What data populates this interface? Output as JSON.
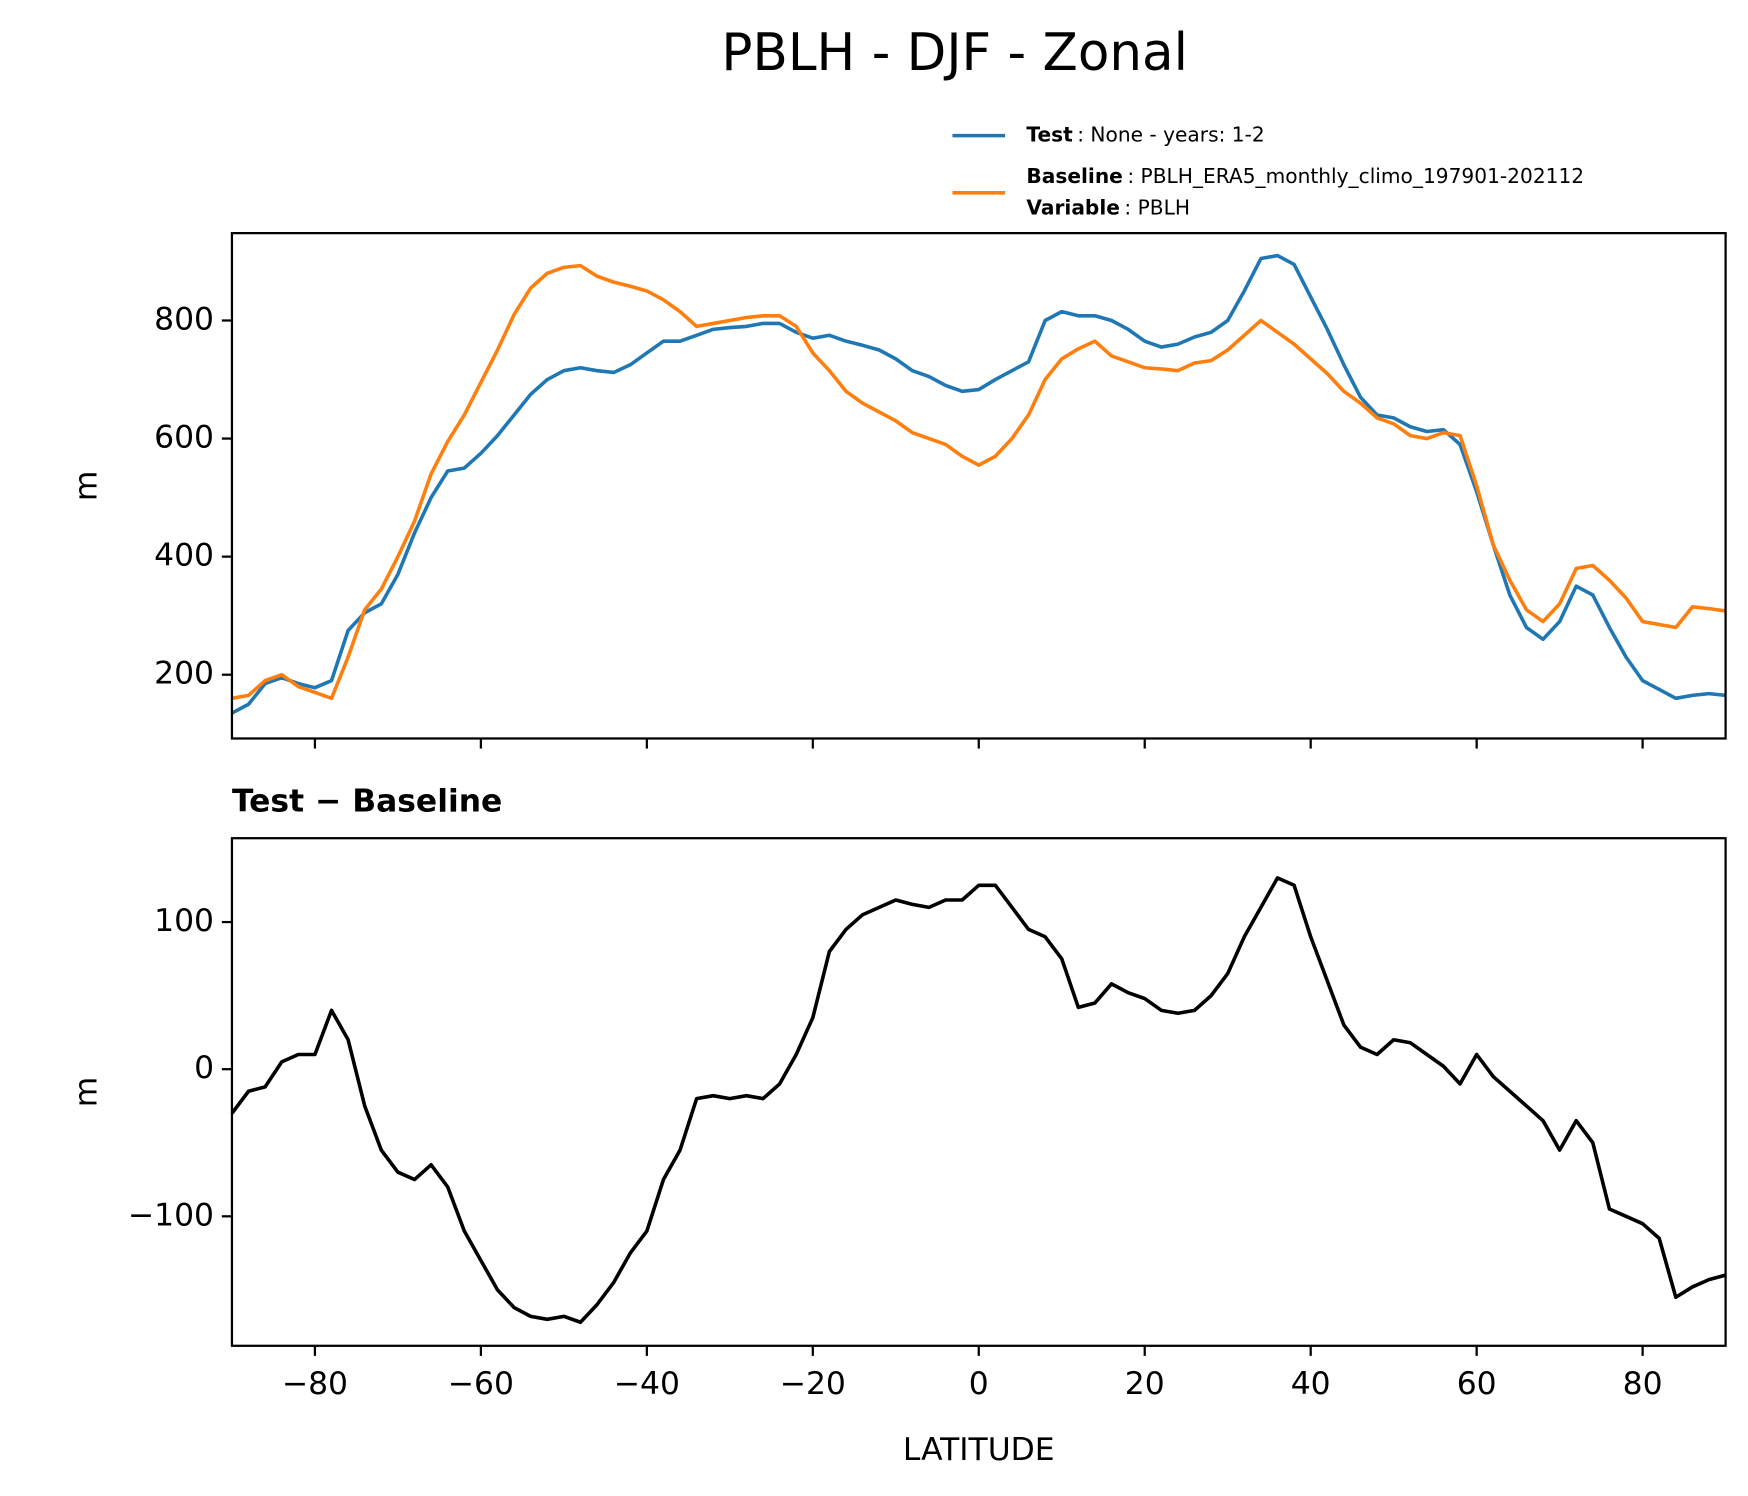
{
  "title": "PBLH - DJF - Zonal",
  "chart_data": [
    {
      "type": "line",
      "ylabel": "m",
      "legend": {
        "extra": {
          "name": "Variable",
          "description": ": PBLH"
        }
      },
      "xlim": [
        -90,
        90
      ],
      "xticks": [
        -80,
        -60,
        -40,
        -20,
        0,
        20,
        40,
        60,
        80
      ],
      "ylim": [
        92,
        948
      ],
      "yticks": [
        200,
        400,
        600,
        800
      ],
      "x": [
        -90,
        -88,
        -86,
        -84,
        -82,
        -80,
        -78,
        -76,
        -74,
        -72,
        -70,
        -68,
        -66,
        -64,
        -62,
        -60,
        -58,
        -56,
        -54,
        -52,
        -50,
        -48,
        -46,
        -44,
        -42,
        -40,
        -38,
        -36,
        -34,
        -32,
        -30,
        -28,
        -26,
        -24,
        -22,
        -20,
        -18,
        -16,
        -14,
        -12,
        -10,
        -8,
        -6,
        -4,
        -2,
        0,
        2,
        4,
        6,
        8,
        10,
        12,
        14,
        16,
        18,
        20,
        22,
        24,
        26,
        28,
        30,
        32,
        34,
        36,
        38,
        40,
        42,
        44,
        46,
        48,
        50,
        52,
        54,
        56,
        58,
        60,
        62,
        64,
        66,
        68,
        70,
        72,
        74,
        76,
        78,
        80,
        82,
        84,
        86,
        88,
        90
      ],
      "series": [
        {
          "name": "Test",
          "description": ": None - years: 1-2",
          "color": "#1f77b4",
          "values": [
            135,
            150,
            185,
            195,
            185,
            178,
            190,
            275,
            305,
            320,
            370,
            440,
            500,
            545,
            550,
            575,
            605,
            640,
            675,
            700,
            715,
            720,
            715,
            712,
            725,
            745,
            765,
            765,
            775,
            785,
            788,
            790,
            795,
            795,
            780,
            770,
            775,
            765,
            758,
            750,
            735,
            715,
            705,
            690,
            680,
            683,
            700,
            715,
            730,
            800,
            815,
            808,
            808,
            800,
            785,
            765,
            755,
            760,
            772,
            780,
            800,
            850,
            905,
            910,
            895,
            840,
            785,
            725,
            670,
            640,
            635,
            620,
            612,
            615,
            590,
            510,
            420,
            335,
            280,
            260,
            290,
            350,
            335,
            280,
            230,
            190,
            175,
            160,
            165,
            168,
            165
          ]
        },
        {
          "name": "Baseline",
          "description": ": PBLH_ERA5_monthly_climo_197901-202112",
          "color": "#ff7f0e",
          "values": [
            160,
            165,
            190,
            200,
            180,
            170,
            160,
            230,
            310,
            345,
            400,
            460,
            540,
            595,
            640,
            695,
            750,
            810,
            855,
            880,
            890,
            893,
            875,
            865,
            858,
            850,
            835,
            815,
            790,
            795,
            800,
            805,
            808,
            808,
            790,
            745,
            715,
            680,
            660,
            645,
            630,
            610,
            600,
            590,
            570,
            555,
            570,
            600,
            640,
            700,
            735,
            752,
            765,
            740,
            730,
            720,
            718,
            715,
            728,
            732,
            750,
            775,
            800,
            780,
            760,
            735,
            710,
            680,
            660,
            635,
            625,
            605,
            600,
            610,
            605,
            520,
            420,
            360,
            310,
            290,
            320,
            380,
            385,
            360,
            330,
            290,
            285,
            280,
            315,
            312,
            308
          ]
        }
      ]
    },
    {
      "type": "line",
      "subtitle": "Test − Baseline",
      "ylabel": "m",
      "xlabel": "LATITUDE",
      "xlim": [
        -90,
        90
      ],
      "xticks": [
        {
          "value": -80,
          "label": "−80"
        },
        {
          "value": -60,
          "label": "−60"
        },
        {
          "value": -40,
          "label": "−40"
        },
        {
          "value": -20,
          "label": "−20"
        },
        0,
        20,
        40,
        60,
        80
      ],
      "ylim": [
        -188,
        157
      ],
      "yticks": [
        {
          "value": -100,
          "label": "−100"
        },
        0,
        100
      ],
      "x": [
        -90,
        -88,
        -86,
        -84,
        -82,
        -80,
        -78,
        -76,
        -74,
        -72,
        -70,
        -68,
        -66,
        -64,
        -62,
        -60,
        -58,
        -56,
        -54,
        -52,
        -50,
        -48,
        -46,
        -44,
        -42,
        -40,
        -38,
        -36,
        -34,
        -32,
        -30,
        -28,
        -26,
        -24,
        -22,
        -20,
        -18,
        -16,
        -14,
        -12,
        -10,
        -8,
        -6,
        -4,
        -2,
        0,
        2,
        4,
        6,
        8,
        10,
        12,
        14,
        16,
        18,
        20,
        22,
        24,
        26,
        28,
        30,
        32,
        34,
        36,
        38,
        40,
        42,
        44,
        46,
        48,
        50,
        52,
        54,
        56,
        58,
        60,
        62,
        64,
        66,
        68,
        70,
        72,
        74,
        76,
        78,
        80,
        82,
        84,
        86,
        88,
        90
      ],
      "color": "#000000",
      "values": [
        -30,
        -15,
        -12,
        5,
        10,
        10,
        40,
        20,
        -25,
        -55,
        -70,
        -75,
        -65,
        -80,
        -110,
        -130,
        -150,
        -162,
        -168,
        -170,
        -168,
        -172,
        -160,
        -145,
        -125,
        -110,
        -75,
        -55,
        -20,
        -18,
        -20,
        -18,
        -20,
        -10,
        10,
        35,
        80,
        95,
        105,
        110,
        115,
        112,
        110,
        115,
        115,
        125,
        125,
        110,
        95,
        90,
        75,
        42,
        45,
        58,
        52,
        48,
        40,
        38,
        40,
        50,
        65,
        90,
        110,
        130,
        125,
        90,
        60,
        30,
        15,
        10,
        20,
        18,
        10,
        2,
        -10,
        10,
        -5,
        -15,
        -25,
        -35,
        -55,
        -35,
        -50,
        -95,
        -100,
        -105,
        -115,
        -155,
        -148,
        -143,
        -140
      ]
    }
  ]
}
